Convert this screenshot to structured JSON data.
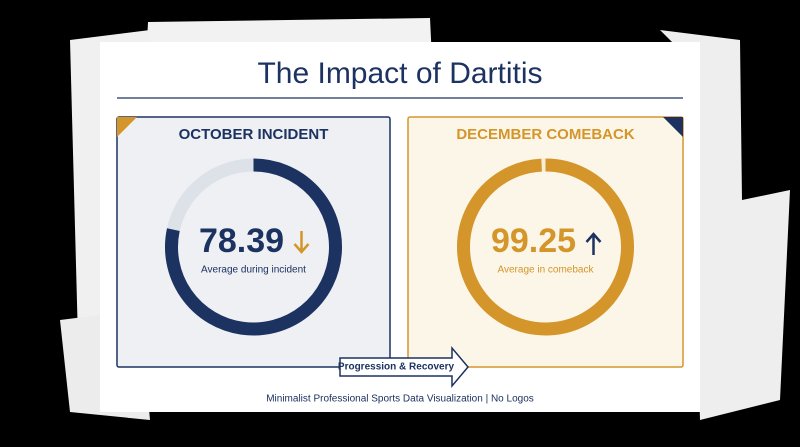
{
  "title": "The Impact of Dartitis",
  "scale": [
    0,
    100
  ],
  "panels": [
    {
      "heading": "OCTOBER INCIDENT",
      "value": 78.39,
      "caption": "Average during incident",
      "color": "#1c3260",
      "background": "#eef0f4"
    },
    {
      "heading": "DECEMBER COMEBACK",
      "value": 99.25,
      "caption": "Average in comeback",
      "color": "#d4962a",
      "background": "#fbf6e8"
    }
  ],
  "banner": "Progression & Recovery",
  "footer": "Minimalist Professional Sports Data Visualization | No Logos"
}
